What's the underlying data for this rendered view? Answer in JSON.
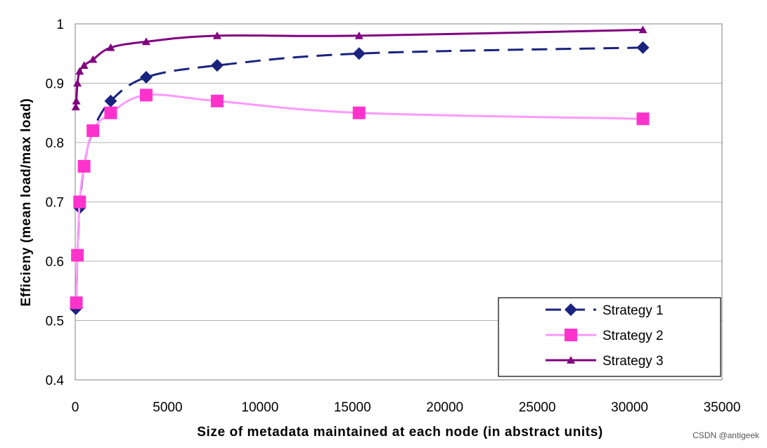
{
  "chart_data": {
    "type": "line",
    "title": "",
    "xlabel": "Size of metadata maintained at each node (in abstract units)",
    "ylabel": "Efficieny (mean load/max load)",
    "xlim": [
      0,
      35000
    ],
    "ylim": [
      0.4,
      1
    ],
    "xticks": [
      "0",
      "5000",
      "10000",
      "15000",
      "20000",
      "25000",
      "30000",
      "35000"
    ],
    "yticks": [
      "0.4",
      "0.5",
      "0.6",
      "0.7",
      "0.8",
      "0.9",
      "1"
    ],
    "grid": "horizontal",
    "legend": "bottom-right",
    "series": [
      {
        "name": "Strategy 1",
        "color": "#1a237e",
        "line_style": "dashed",
        "marker": "diamond",
        "x": [
          30,
          60,
          120,
          240,
          480,
          960,
          1920,
          3840,
          7680,
          15360,
          30720
        ],
        "y": [
          0.52,
          0.53,
          0.61,
          0.69,
          0.76,
          0.82,
          0.87,
          0.91,
          0.93,
          0.95,
          0.96
        ]
      },
      {
        "name": "Strategy 2",
        "color": "#ff99ff",
        "marker_color": "#ff33cc",
        "line_style": "solid",
        "marker": "square",
        "x": [
          60,
          120,
          240,
          480,
          960,
          1920,
          3840,
          7680,
          15360,
          30720
        ],
        "y": [
          0.53,
          0.61,
          0.7,
          0.76,
          0.82,
          0.85,
          0.88,
          0.87,
          0.85,
          0.84
        ]
      },
      {
        "name": "Strategy 3",
        "color": "#800080",
        "line_style": "solid",
        "marker": "triangle",
        "x": [
          30,
          60,
          120,
          240,
          480,
          960,
          1920,
          3840,
          7680,
          15360,
          30720
        ],
        "y": [
          0.86,
          0.87,
          0.9,
          0.92,
          0.93,
          0.94,
          0.96,
          0.97,
          0.98,
          0.98,
          0.99
        ]
      }
    ]
  },
  "watermark": "CSDN @antigeek"
}
